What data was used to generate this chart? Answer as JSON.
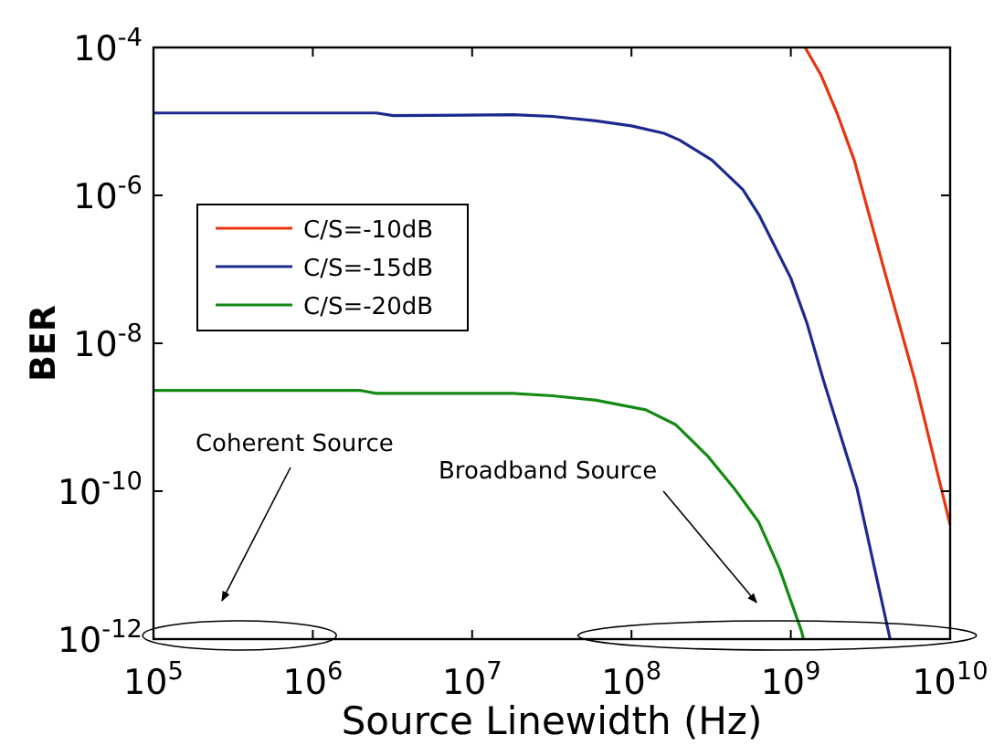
{
  "chart_data": {
    "type": "line",
    "xlabel": "Source Linewidth (Hz)",
    "ylabel": "BER",
    "log": "xy",
    "grid": false,
    "legend": "top left",
    "line_style": "solid",
    "xlim": [
      100000,
      10000000000
    ],
    "ylim": [
      1e-12,
      0.0001
    ],
    "xticks": [
      {
        "value": 100000,
        "label": "10$^{5}$"
      },
      {
        "value": 1000000,
        "label": "10$^{6}$"
      },
      {
        "value": 10000000,
        "label": "10$^{7}$"
      },
      {
        "value": 100000000,
        "label": "10$^{8}$"
      },
      {
        "value": 1000000000,
        "label": "10$^{9}$"
      },
      {
        "value": 10000000000,
        "label": "10$^{10}$"
      }
    ],
    "yticks": [
      {
        "value": 1e-12,
        "label": "10$^{-12}$"
      },
      {
        "value": 1e-10,
        "label": "10$^{-10}$"
      },
      {
        "value": 1e-08,
        "label": "10$^{-8}$"
      },
      {
        "value": 1e-06,
        "label": "10$^{-6}$"
      },
      {
        "value": 0.0001,
        "label": "10$^{-4}$"
      }
    ],
    "series": [
      {
        "name": "C/S=-10dB",
        "color": "#e8340f",
        "x": [
          1230000000.0,
          1550000000.0,
          1950000000.0,
          2500000000.0,
          3800000000.0,
          6000000000.0,
          10000000000.0
        ],
        "values": [
          0.0001,
          4.2e-05,
          1.3e-05,
          3e-06,
          1.1e-07,
          3.2e-09,
          3.5e-11
        ]
      },
      {
        "name": "C/S=-15dB",
        "color": "#1c2a8f",
        "x": [
          100000.0,
          2500000.0,
          3200000.0,
          18000000.0,
          32000000.0,
          60000000.0,
          100000000.0,
          160000000.0,
          200000000.0,
          320000000.0,
          500000000.0,
          630000000.0,
          1000000000.0,
          1260000000.0,
          1600000000.0,
          2600000000.0,
          4200000000.0
        ],
        "values": [
          1.3e-05,
          1.3e-05,
          1.2e-05,
          1.23e-05,
          1.17e-05,
          1.02e-05,
          8.7e-06,
          6.9e-06,
          5.6e-06,
          3e-06,
          1.2e-06,
          5.5e-07,
          7.6e-08,
          1.9e-08,
          3.2e-09,
          1.1e-10,
          1e-12
        ]
      },
      {
        "name": "C/S=-20dB",
        "color": "#138a13",
        "x": [
          100000.0,
          2000000.0,
          2500000.0,
          18000000.0,
          32000000.0,
          60000000.0,
          123000000.0,
          190000000.0,
          300000000.0,
          440000000.0,
          630000000.0,
          850000000.0,
          1170000000.0,
          1200000000.0
        ],
        "values": [
          2.3e-09,
          2.3e-09,
          2.1e-09,
          2.1e-09,
          1.95e-09,
          1.7e-09,
          1.26e-09,
          7.9e-10,
          3e-10,
          1.1e-10,
          3.8e-11,
          8.9e-12,
          1.26e-12,
          1e-12
        ]
      }
    ],
    "annotations": [
      "Coherent Source",
      "Broadband Source"
    ]
  }
}
